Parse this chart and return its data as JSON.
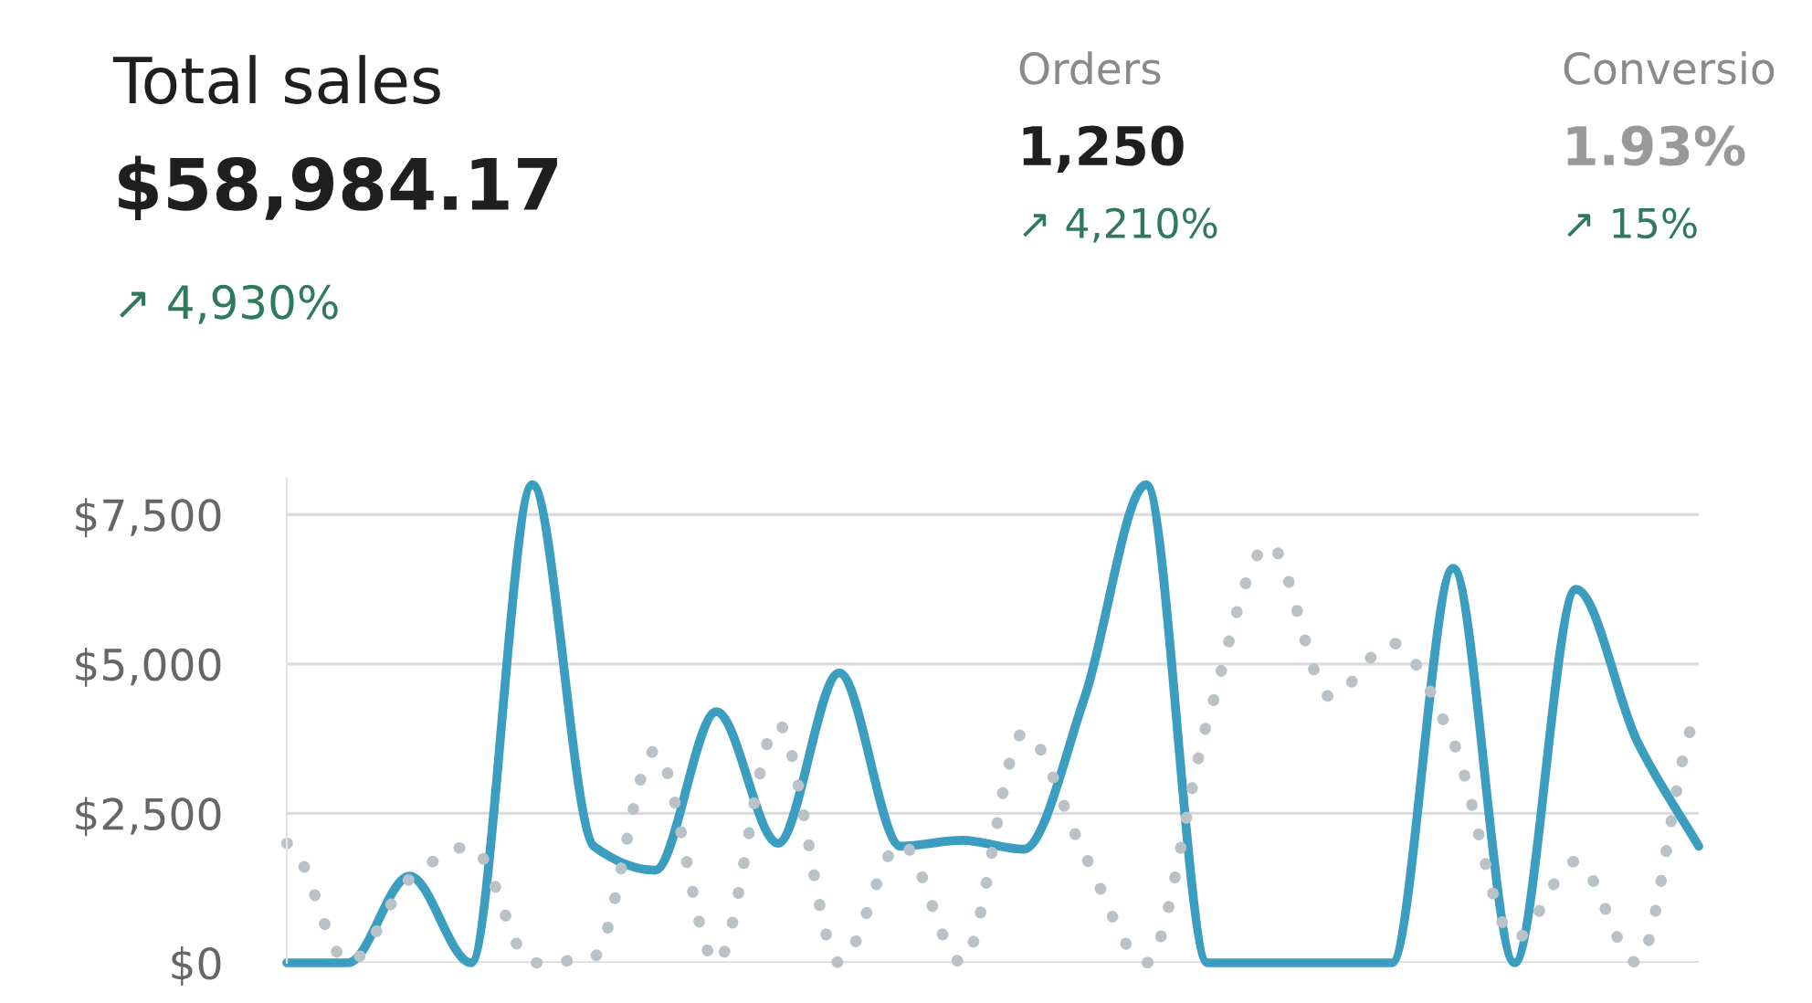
{
  "chart_data": [
    {
      "type": "other",
      "annotations": [
        "Total sales",
        "$58,984.17",
        "↗ 4,930%",
        "Orders",
        "1,250",
        "↗ 4,210%",
        "Conversio",
        "1.93%",
        "↗ 15%"
      ]
    },
    {
      "type": "line",
      "categories": [
        null,
        null,
        null,
        null,
        null,
        null,
        null,
        null,
        null,
        null,
        null,
        null,
        null,
        null,
        null,
        null,
        null,
        null,
        null,
        null,
        null,
        null,
        null,
        null
      ],
      "series": [
        {
          "color": "#3b9dbf",
          "line_style": "solid",
          "values": [
            0,
            0,
            1450,
            0,
            8000,
            1950,
            1550,
            4200,
            2000,
            4850,
            1950,
            2050,
            1900,
            4450,
            8000,
            0,
            0,
            0,
            0,
            6600,
            0,
            6250,
            3700,
            1950
          ]
        },
        {
          "color": "#b9c3c7",
          "line_style": "dotted",
          "values": [
            2000,
            0,
            1400,
            1950,
            0,
            100,
            3550,
            0,
            4000,
            0,
            2000,
            0,
            3850,
            1800,
            0,
            4050,
            7000,
            4450,
            5350,
            3700,
            400,
            1700,
            0,
            4100
          ]
        }
      ],
      "ylim": [
        0,
        8100
      ],
      "yticks": [
        {
          "value": 0,
          "label": "$0"
        },
        {
          "value": 2500,
          "label": "$2,500"
        },
        {
          "value": 5000,
          "label": "$5,000"
        },
        {
          "value": 7500,
          "label": "$7,500"
        }
      ],
      "grid": "y",
      "tick_labels": "y"
    }
  ]
}
